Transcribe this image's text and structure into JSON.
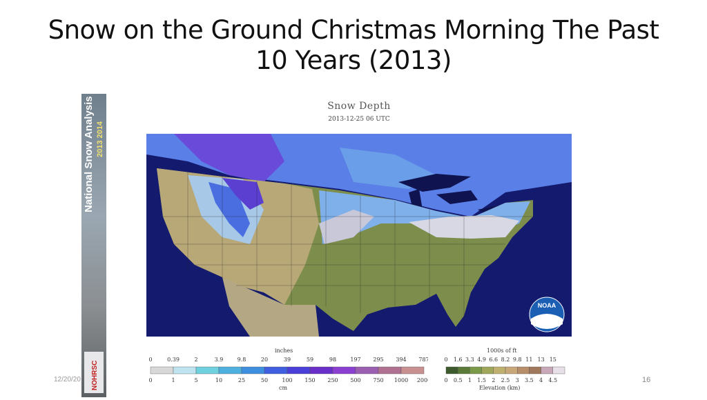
{
  "slide": {
    "title": "Snow on the Ground Christmas Morning The Past 10 Years (2013)",
    "date": "12/20/20",
    "page_number": "16"
  },
  "sidebar": {
    "text": "National Snow Analysis",
    "years": "2013 2014",
    "logo_text": "NOHRSC"
  },
  "map": {
    "title": "Snow Depth",
    "timestamp": "2013-12-25 06 UTC",
    "logo_text": "NOAA"
  },
  "snow_legend": {
    "top_unit": "inches",
    "top_ticks": [
      "0",
      "0.39",
      "2",
      "3.9",
      "9.8",
      "20",
      "39",
      "59",
      "98",
      "197",
      "295",
      "394",
      "787"
    ],
    "bottom_ticks": [
      "0",
      "1",
      "5",
      "10",
      "25",
      "50",
      "100",
      "150",
      "250",
      "500",
      "750",
      "1000",
      "2000"
    ],
    "bottom_unit": "cm",
    "colors": [
      "#d8d8d8",
      "#bfe3ef",
      "#6fd0df",
      "#4fb0e0",
      "#3f8fe0",
      "#3f5fe0",
      "#4a3fd8",
      "#6a2fc8",
      "#8a3fd0",
      "#9a5fb0",
      "#b07090",
      "#c89090"
    ]
  },
  "elevation_legend": {
    "top_unit": "1000s of ft",
    "top_ticks": [
      "0",
      "1.6",
      "3.3",
      "4.9",
      "6.6",
      "8.2",
      "9.8",
      "11",
      "13",
      "15"
    ],
    "bottom_ticks": [
      "0",
      "0.5",
      "1",
      "1.5",
      "2",
      "2.5",
      "3",
      "3.5",
      "4",
      "4.5"
    ],
    "bottom_unit": "Elevation (km)",
    "colors": [
      "#3c5a2c",
      "#5a7a3a",
      "#7a9a4a",
      "#a0a65a",
      "#c0b070",
      "#c8a878",
      "#b88e6a",
      "#a0785c",
      "#c8a8b8",
      "#e8e0e8"
    ]
  }
}
